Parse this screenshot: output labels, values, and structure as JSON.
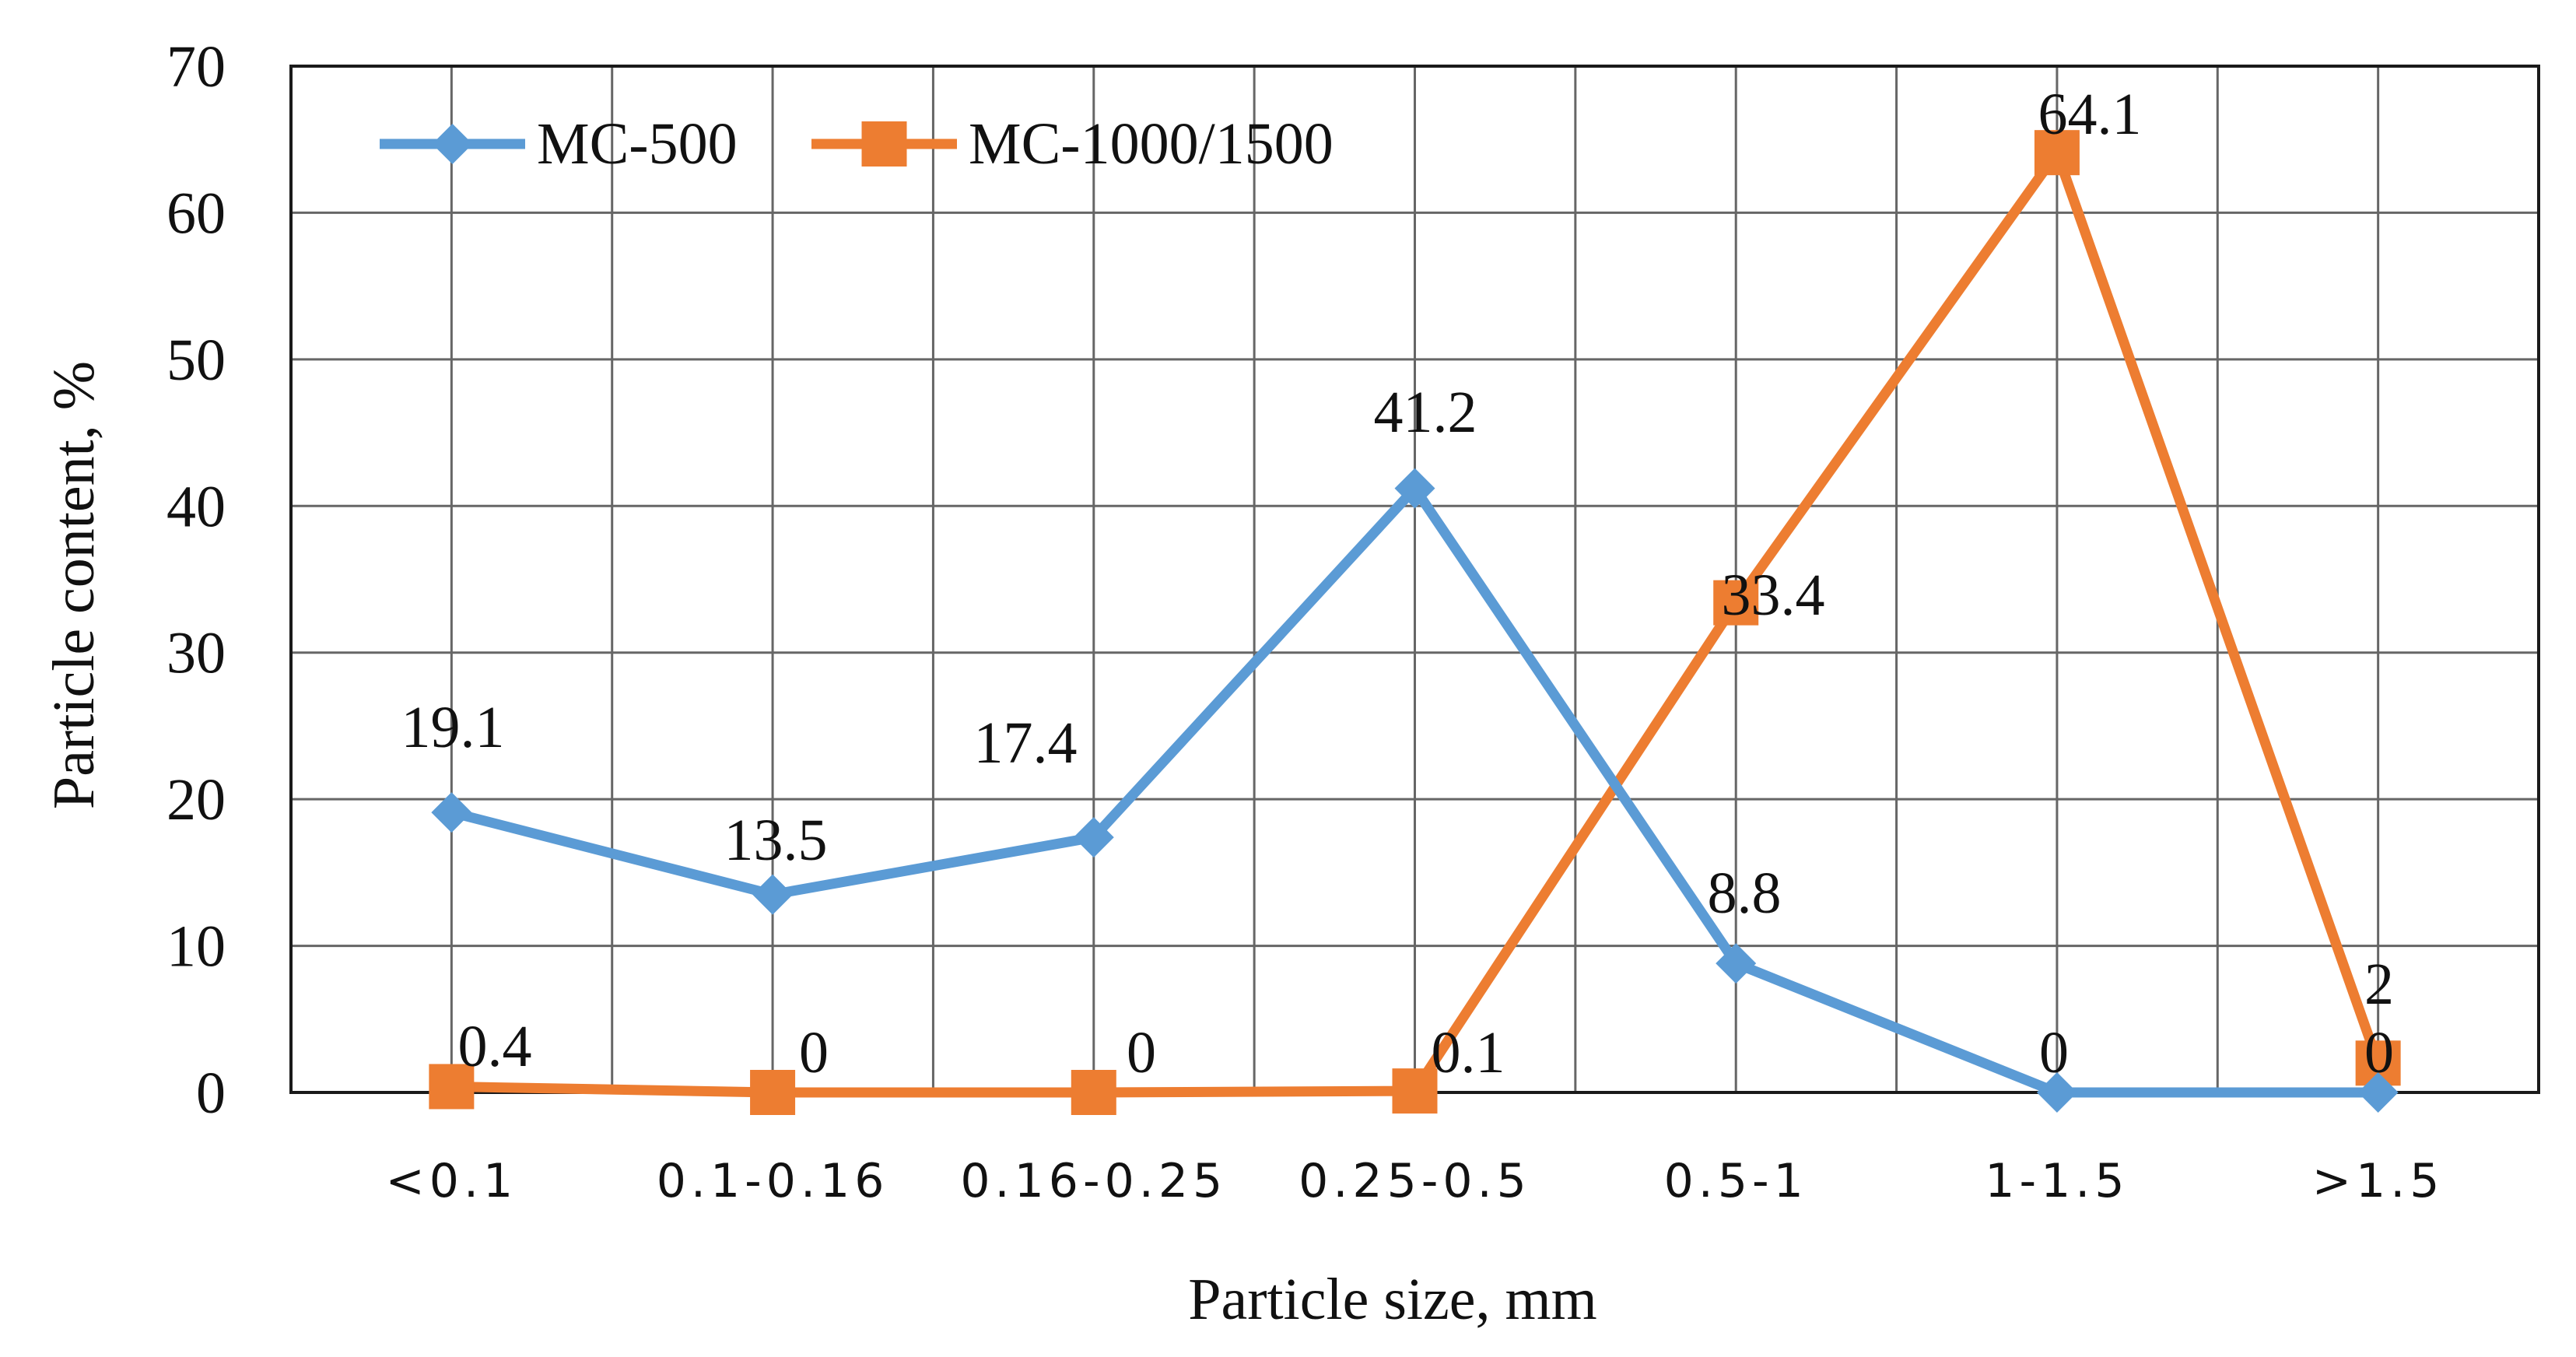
{
  "chart_data": {
    "type": "line",
    "title": "",
    "xlabel": "Particle size, mm",
    "ylabel": "Particle content, %",
    "categories": [
      "<0.1",
      "0.1-0.16",
      "0.16-0.25",
      "0.25-0.5",
      "0.5-1",
      "1-1.5",
      ">1.5"
    ],
    "ylim": [
      0,
      70
    ],
    "yticks": [
      0,
      10,
      20,
      30,
      40,
      50,
      60,
      70
    ],
    "grid": true,
    "legend": "top-left",
    "series": [
      {
        "name": "MC-500",
        "color": "#5B9BD5",
        "marker": "diamond",
        "values": [
          19.1,
          13.5,
          17.4,
          41.2,
          8.8,
          0,
          0
        ],
        "labels": [
          "19.1",
          "13.5",
          "17.4",
          "41.2",
          "8.8",
          "0",
          "0"
        ]
      },
      {
        "name": "MC-1000/1500",
        "color": "#ED7D31",
        "marker": "square",
        "values": [
          0.4,
          0,
          0,
          0.1,
          33.4,
          64.1,
          2
        ],
        "labels": [
          "0.4",
          "0",
          "0",
          "0.1",
          "33.4",
          "64.1",
          "2"
        ]
      }
    ]
  }
}
